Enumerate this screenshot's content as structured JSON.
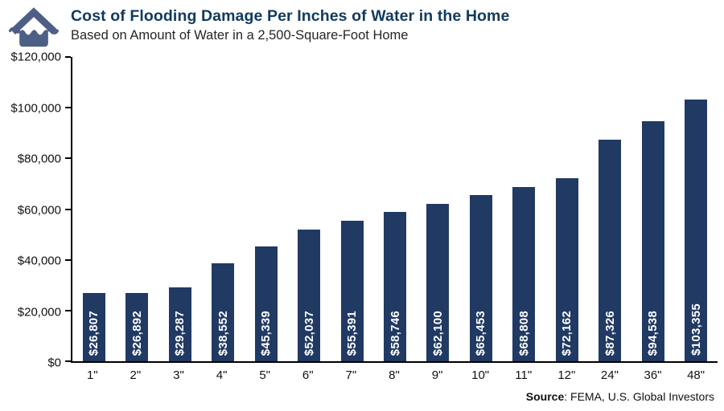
{
  "header": {
    "title": "Cost of Flooding Damage Per Inches of Water in the Home",
    "subtitle": "Based on Amount of Water in a 2,500-Square-Foot Home"
  },
  "source": {
    "label": "Source",
    "rest": ": FEMA, U.S. Global Investors"
  },
  "colors": {
    "bar": "#213a63",
    "title": "#113a5e",
    "icon": "#4d5f86",
    "axis": "#000000"
  },
  "chart_data": {
    "type": "bar",
    "title": "Cost of Flooding Damage Per Inches of Water in the Home",
    "subtitle": "Based on Amount of Water in a 2,500-Square-Foot Home",
    "xlabel": "",
    "ylabel": "",
    "ylim": [
      0,
      120000
    ],
    "grid": false,
    "legend": "none",
    "categories": [
      "1\"",
      "2\"",
      "3\"",
      "4\"",
      "5\"",
      "6\"",
      "7\"",
      "8\"",
      "9\"",
      "10\"",
      "11\"",
      "12\"",
      "24\"",
      "36\"",
      "48\""
    ],
    "values": [
      26807,
      26892,
      29287,
      38552,
      45339,
      52037,
      55391,
      58746,
      62100,
      65453,
      68808,
      72162,
      87326,
      94538,
      103355
    ],
    "bar_labels": [
      "$26,807",
      "$26,892",
      "$29,287",
      "$38,552",
      "$45,339",
      "$52,037",
      "$55,391",
      "$58,746",
      "$62,100",
      "$65,453",
      "$68,808",
      "$72,162",
      "$87,326",
      "$94,538",
      "$103,355"
    ],
    "yticks": [
      {
        "label": "$120,000",
        "value": 120000
      },
      {
        "label": "$100,000",
        "value": 100000
      },
      {
        "label": "$80,000",
        "value": 80000
      },
      {
        "label": "$60,000",
        "value": 60000
      },
      {
        "label": "$40,000",
        "value": 40000
      },
      {
        "label": "$20,000",
        "value": 20000
      },
      {
        "label": "$0",
        "value": 0
      }
    ]
  }
}
